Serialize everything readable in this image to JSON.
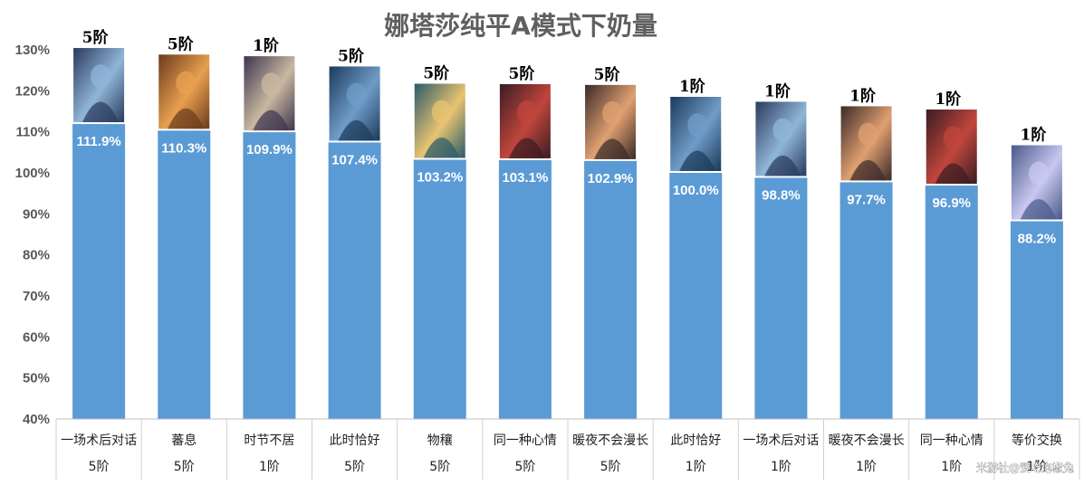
{
  "chart_data": {
    "type": "bar",
    "title": "娜塔莎纯平A模式下奶量",
    "xlabel": "",
    "ylabel": "",
    "ylim": [
      0.4,
      1.3
    ],
    "yticks": [
      "40%",
      "50%",
      "60%",
      "70%",
      "80%",
      "90%",
      "100%",
      "110%",
      "120%",
      "130%"
    ],
    "grid": false,
    "legend": "none",
    "bar_color": "#5b9bd5",
    "categories": [
      {
        "name": "一场术后对话",
        "rank": "5阶"
      },
      {
        "name": "蕃息",
        "rank": "5阶"
      },
      {
        "name": "时节不居",
        "rank": "1阶"
      },
      {
        "name": "此时恰好",
        "rank": "5阶"
      },
      {
        "name": "物穰",
        "rank": "5阶"
      },
      {
        "name": "同一种心情",
        "rank": "5阶"
      },
      {
        "name": "暖夜不会漫长",
        "rank": "5阶"
      },
      {
        "name": "此时恰好",
        "rank": "1阶"
      },
      {
        "name": "一场术后对话",
        "rank": "1阶"
      },
      {
        "name": "暖夜不会漫长",
        "rank": "1阶"
      },
      {
        "name": "同一种心情",
        "rank": "1阶"
      },
      {
        "name": "等价交换",
        "rank": "1阶"
      }
    ],
    "values": [
      1.119,
      1.103,
      1.099,
      1.074,
      1.032,
      1.031,
      1.029,
      1.0,
      0.988,
      0.977,
      0.969,
      0.882
    ],
    "data_labels": [
      "111.9%",
      "110.3%",
      "109.9%",
      "107.4%",
      "103.2%",
      "103.1%",
      "102.9%",
      "100.0%",
      "98.8%",
      "97.7%",
      "96.9%",
      "88.2%"
    ],
    "card_palettes": [
      [
        "#2a3a5c",
        "#8fb6d8"
      ],
      [
        "#6b3a1c",
        "#e8a050"
      ],
      [
        "#3d3450",
        "#c9b8a0"
      ],
      [
        "#1c3a5a",
        "#6f9cc8"
      ],
      [
        "#2a5a6a",
        "#e8c470"
      ],
      [
        "#3a1c22",
        "#c0463c"
      ],
      [
        "#3a2a2a",
        "#e0a070"
      ],
      [
        "#1c3a5a",
        "#6f9cc8"
      ],
      [
        "#2a3a5c",
        "#8fb6d8"
      ],
      [
        "#3a2a2a",
        "#e0a070"
      ],
      [
        "#3a1c22",
        "#c0463c"
      ],
      [
        "#4a5a8a",
        "#c8c8f0"
      ]
    ]
  },
  "watermark": "米游社@爱吃泡椒兔"
}
